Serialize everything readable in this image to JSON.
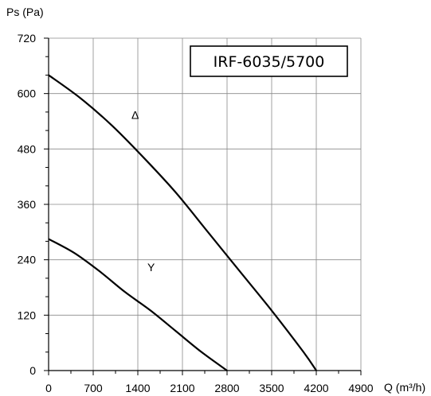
{
  "chart_data": {
    "type": "line",
    "title": "IRF-6035/5700",
    "xlabel": "Q (m³/h)",
    "ylabel": "Ps (Pa)",
    "xlim": [
      0,
      4900
    ],
    "ylim": [
      0,
      720
    ],
    "x_ticks": [
      "0",
      "700",
      "1400",
      "2100",
      "2800",
      "3500",
      "4200",
      "4900"
    ],
    "y_ticks": [
      "0",
      "120",
      "240",
      "360",
      "480",
      "600",
      "720"
    ],
    "grid": true,
    "series": [
      {
        "name": "Δ",
        "x": [
          0,
          500,
          1000,
          1500,
          2000,
          2500,
          3000,
          3500,
          4000,
          4200
        ],
        "y": [
          640,
          590,
          530,
          460,
          385,
          300,
          215,
          130,
          40,
          0
        ]
      },
      {
        "name": "Y",
        "x": [
          0,
          400,
          800,
          1200,
          1600,
          2000,
          2400,
          2800
        ],
        "y": [
          285,
          255,
          215,
          170,
          130,
          85,
          40,
          0
        ]
      }
    ]
  }
}
